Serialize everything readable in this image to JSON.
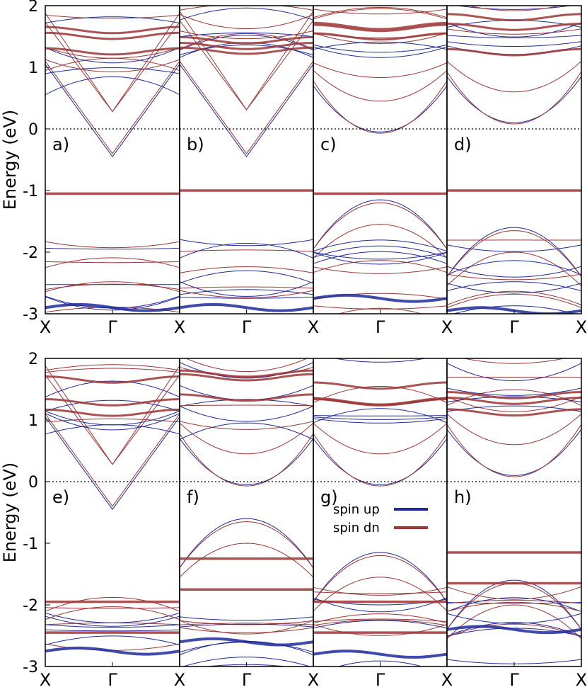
{
  "figure": {
    "ylabel": "Energy (eV)",
    "legend": {
      "up": "spin up",
      "dn": "spin dn"
    },
    "colors": {
      "up": "#1f2a9c",
      "dn": "#9c3535",
      "fermi": "#000000"
    }
  },
  "chart_data": [
    {
      "type": "line",
      "ylabel": "Energy (eV)",
      "ylim": [
        -3,
        2
      ],
      "yticks": [
        "2",
        "1",
        "0",
        "-1",
        "-2",
        "-3"
      ],
      "panels": [
        {
          "label": "a)",
          "kpoints": [
            "X",
            "Γ",
            "X"
          ]
        },
        {
          "label": "b)",
          "kpoints": [
            "X",
            "Γ",
            "X"
          ]
        },
        {
          "label": "c)",
          "kpoints": [
            "X",
            "Γ",
            "X"
          ]
        },
        {
          "label": "d)",
          "kpoints": [
            "X",
            "Γ",
            "X"
          ]
        }
      ],
      "series": [
        {
          "name": "spin up",
          "color": "#1f2a9c"
        },
        {
          "name": "spin dn",
          "color": "#9c3535"
        }
      ],
      "fermi_level": 0
    },
    {
      "type": "line",
      "ylabel": "Energy (eV)",
      "ylim": [
        -3,
        2
      ],
      "yticks": [
        "2",
        "1",
        "0",
        "-1",
        "-2",
        "-3"
      ],
      "panels": [
        {
          "label": "e)",
          "kpoints": [
            "X",
            "Γ",
            "X"
          ]
        },
        {
          "label": "f)",
          "kpoints": [
            "X",
            "Γ",
            "X"
          ]
        },
        {
          "label": "g)",
          "kpoints": [
            "X",
            "Γ",
            "X"
          ]
        },
        {
          "label": "h)",
          "kpoints": [
            "X",
            "Γ",
            "X"
          ]
        }
      ],
      "series": [
        {
          "name": "spin up",
          "color": "#1f2a9c"
        },
        {
          "name": "spin dn",
          "color": "#9c3535"
        }
      ],
      "fermi_level": 0
    }
  ]
}
